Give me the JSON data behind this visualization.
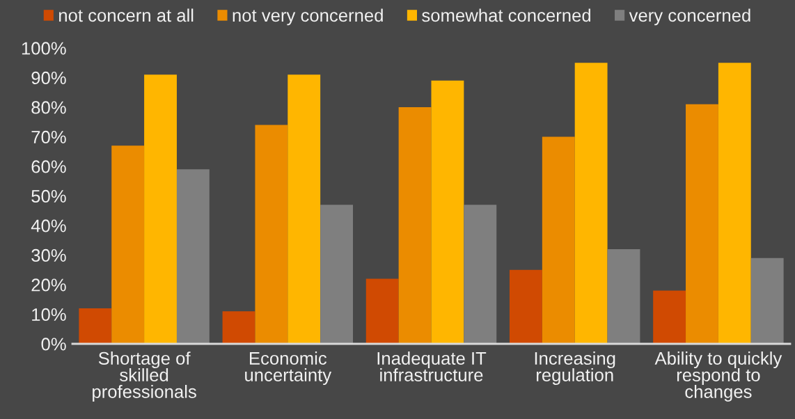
{
  "chart_data": {
    "type": "bar",
    "categories": [
      "Shortage of\nskilled\nprofessionals",
      "Economic\nuncertainty",
      "Inadequate IT\ninfrastructure",
      "Increasing\nregulation",
      "Ability to quickly\nrespond to\nchanges"
    ],
    "series": [
      {
        "name": "not concern at all",
        "color": "#d04a02",
        "values": [
          12,
          11,
          22,
          25,
          18
        ]
      },
      {
        "name": "not very concerned",
        "color": "#eb8c00",
        "values": [
          67,
          74,
          80,
          70,
          81
        ]
      },
      {
        "name": "somewhat concerned",
        "color": "#ffb600",
        "values": [
          91,
          91,
          89,
          95,
          95
        ]
      },
      {
        "name": "very concerned",
        "color": "#7f7f7f",
        "values": [
          59,
          47,
          47,
          32,
          29
        ]
      }
    ],
    "ylim": [
      0,
      100
    ],
    "yticks": [
      {
        "value": 0,
        "label": "0%"
      },
      {
        "value": 10,
        "label": "10%"
      },
      {
        "value": 20,
        "label": "20%"
      },
      {
        "value": 30,
        "label": "30%"
      },
      {
        "value": 40,
        "label": "40%"
      },
      {
        "value": 50,
        "label": "50%"
      },
      {
        "value": 60,
        "label": "60%"
      },
      {
        "value": 70,
        "label": "70%"
      },
      {
        "value": 80,
        "label": "80%"
      },
      {
        "value": 90,
        "label": "90%"
      },
      {
        "value": 100,
        "label": "100%"
      }
    ],
    "legend": "top"
  }
}
